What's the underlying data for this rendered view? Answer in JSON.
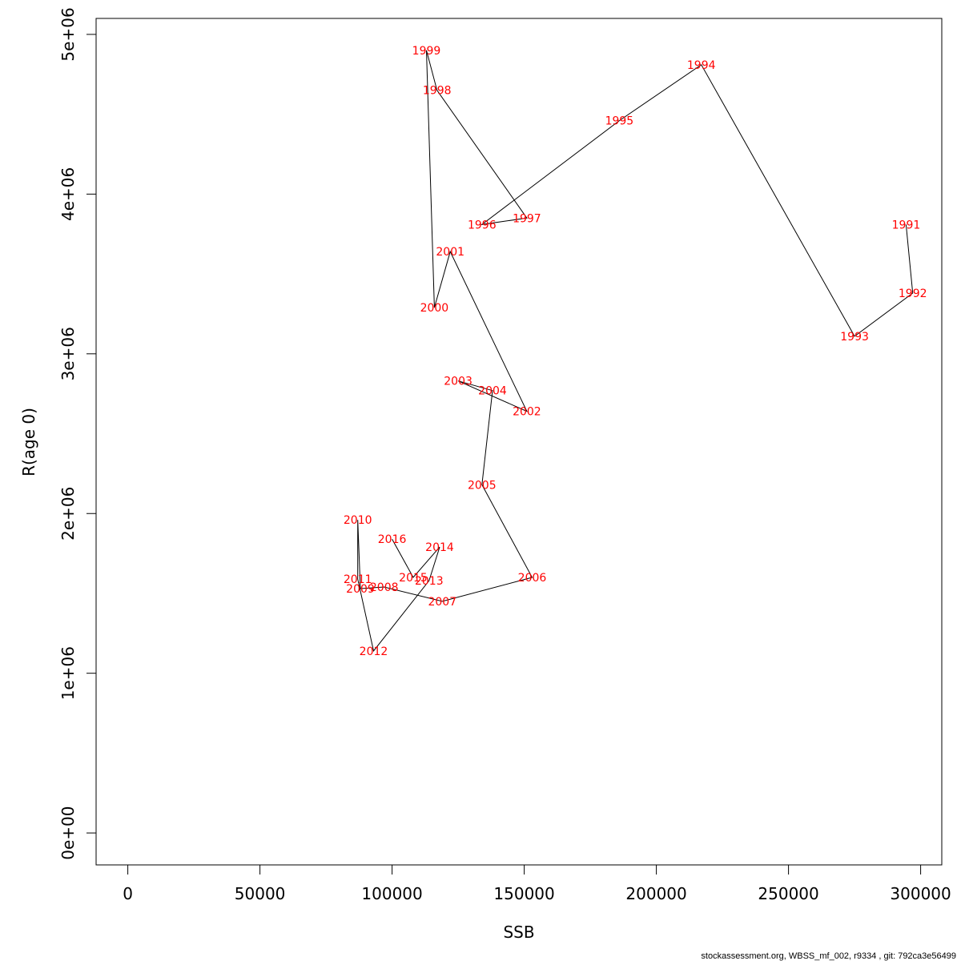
{
  "chart_data": {
    "type": "scatter",
    "connected": true,
    "title": "",
    "xlabel": "SSB",
    "ylabel": "R(age 0)",
    "xlim": [
      -12000,
      308000
    ],
    "ylim": [
      -200000,
      5100000
    ],
    "xticks": [
      0,
      50000,
      100000,
      150000,
      200000,
      250000,
      300000
    ],
    "xtick_labels": [
      "0",
      "50000",
      "100000",
      "150000",
      "200000",
      "250000",
      "300000"
    ],
    "yticks": [
      0,
      1000000,
      2000000,
      3000000,
      4000000,
      5000000
    ],
    "ytick_labels": [
      "0e+00",
      "1e+06",
      "2e+06",
      "3e+06",
      "4e+06",
      "5e+06"
    ],
    "line_color": "#000000",
    "label_color": "#ff0000",
    "points": [
      {
        "year": "1991",
        "ssb": 294500,
        "r": 3810000
      },
      {
        "year": "1992",
        "ssb": 297000,
        "r": 3380000
      },
      {
        "year": "1993",
        "ssb": 275000,
        "r": 3110000
      },
      {
        "year": "1994",
        "ssb": 217000,
        "r": 4810000
      },
      {
        "year": "1995",
        "ssb": 186000,
        "r": 4460000
      },
      {
        "year": "1996",
        "ssb": 134000,
        "r": 3810000
      },
      {
        "year": "1997",
        "ssb": 151000,
        "r": 3850000
      },
      {
        "year": "1998",
        "ssb": 117000,
        "r": 4650000
      },
      {
        "year": "1999",
        "ssb": 113000,
        "r": 4900000
      },
      {
        "year": "2000",
        "ssb": 116000,
        "r": 3290000
      },
      {
        "year": "2001",
        "ssb": 122000,
        "r": 3640000
      },
      {
        "year": "2002",
        "ssb": 151000,
        "r": 2640000
      },
      {
        "year": "2003",
        "ssb": 125000,
        "r": 2830000
      },
      {
        "year": "2004",
        "ssb": 138000,
        "r": 2770000
      },
      {
        "year": "2005",
        "ssb": 134000,
        "r": 2180000
      },
      {
        "year": "2006",
        "ssb": 153000,
        "r": 1600000
      },
      {
        "year": "2007",
        "ssb": 119000,
        "r": 1450000
      },
      {
        "year": "2008",
        "ssb": 97000,
        "r": 1540000
      },
      {
        "year": "2009",
        "ssb": 88000,
        "r": 1530000
      },
      {
        "year": "2010",
        "ssb": 87000,
        "r": 1960000
      },
      {
        "year": "2011",
        "ssb": 87000,
        "r": 1590000
      },
      {
        "year": "2012",
        "ssb": 93000,
        "r": 1140000
      },
      {
        "year": "2013",
        "ssb": 114000,
        "r": 1580000
      },
      {
        "year": "2014",
        "ssb": 118000,
        "r": 1790000
      },
      {
        "year": "2015",
        "ssb": 108000,
        "r": 1600000
      },
      {
        "year": "2016",
        "ssb": 100000,
        "r": 1840000
      }
    ]
  },
  "footer": {
    "text": "stockassessment.org, WBSS_mf_002, r9334 , git: 792ca3e56499"
  }
}
